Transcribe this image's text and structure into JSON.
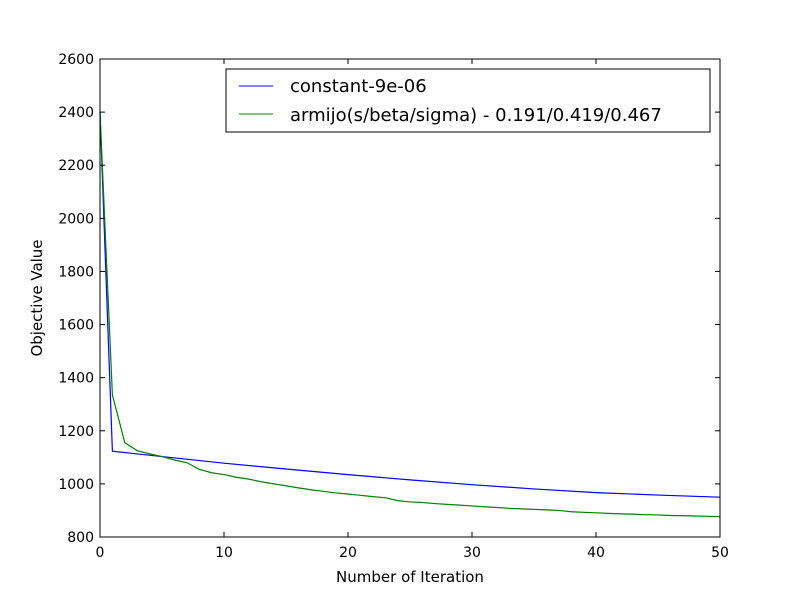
{
  "chart_data": {
    "type": "line",
    "title": "",
    "xlabel": "Number of Iteration",
    "ylabel": "Objective Value",
    "xlim": [
      0,
      50
    ],
    "ylim": [
      800,
      2600
    ],
    "xticks": [
      0,
      10,
      20,
      30,
      40,
      50
    ],
    "yticks": [
      800,
      1000,
      1200,
      1400,
      1600,
      1800,
      2000,
      2200,
      2400,
      2600
    ],
    "grid": false,
    "legend_position": "top-right",
    "series": [
      {
        "name": "constant-9e-06",
        "color": "#0000ff",
        "x": [
          0,
          1,
          5,
          10,
          15,
          20,
          25,
          30,
          35,
          40,
          45,
          50
        ],
        "y": [
          2400,
          1123,
          1103,
          1078,
          1056,
          1035,
          1015,
          997,
          981,
          967,
          958,
          950
        ]
      },
      {
        "name": "armijo(s/beta/sigma) - 0.191/0.419/0.467",
        "color": "#008000",
        "x": [
          0,
          1,
          2,
          3,
          4,
          5,
          6,
          7,
          8,
          9,
          10,
          11,
          12,
          13,
          14,
          15,
          16,
          17,
          18,
          19,
          20,
          21,
          22,
          23,
          24,
          25,
          26,
          27,
          28,
          29,
          30,
          31,
          32,
          33,
          34,
          35,
          36,
          37,
          38,
          39,
          40,
          41,
          42,
          43,
          44,
          45,
          46,
          47,
          48,
          49,
          50
        ],
        "y": [
          2400,
          1335,
          1155,
          1125,
          1113,
          1103,
          1090,
          1080,
          1055,
          1042,
          1035,
          1025,
          1018,
          1008,
          1000,
          993,
          985,
          978,
          972,
          966,
          962,
          957,
          952,
          948,
          937,
          932,
          930,
          926,
          923,
          920,
          917,
          914,
          911,
          908,
          906,
          904,
          902,
          900,
          895,
          893,
          891,
          889,
          887,
          886,
          884,
          883,
          881,
          880,
          879,
          878,
          877
        ]
      }
    ]
  }
}
